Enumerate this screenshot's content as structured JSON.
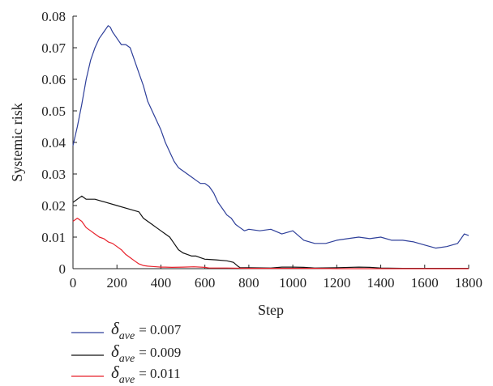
{
  "chart_data": {
    "type": "line",
    "title": "",
    "xlabel": "Step",
    "ylabel": "Systemic risk",
    "xlim": [
      0,
      1800
    ],
    "ylim": [
      0,
      0.08
    ],
    "xticks": [
      "0",
      "200",
      "400",
      "600",
      "800",
      "1000",
      "1200",
      "1400",
      "1600",
      "1800"
    ],
    "yticks": [
      "0",
      "0.01",
      "0.02",
      "0.03",
      "0.04",
      "0.05",
      "0.06",
      "0.07",
      "0.08"
    ],
    "legend_position": "bottom-left",
    "series": [
      {
        "symbol": "δ",
        "subscript": "ave",
        "value_text": "= 0.007",
        "color": "#2e3f9a",
        "x": [
          0,
          20,
          40,
          60,
          80,
          100,
          120,
          140,
          160,
          170,
          180,
          200,
          220,
          240,
          260,
          280,
          300,
          320,
          340,
          360,
          380,
          400,
          420,
          440,
          460,
          480,
          500,
          520,
          540,
          560,
          580,
          600,
          620,
          640,
          660,
          680,
          700,
          720,
          740,
          760,
          780,
          800,
          850,
          900,
          950,
          1000,
          1050,
          1100,
          1150,
          1200,
          1250,
          1300,
          1350,
          1400,
          1450,
          1500,
          1550,
          1600,
          1650,
          1700,
          1750,
          1780,
          1800
        ],
        "y": [
          0.039,
          0.045,
          0.052,
          0.06,
          0.066,
          0.07,
          0.073,
          0.075,
          0.077,
          0.0765,
          0.075,
          0.073,
          0.071,
          0.071,
          0.07,
          0.066,
          0.062,
          0.058,
          0.053,
          0.05,
          0.047,
          0.044,
          0.04,
          0.037,
          0.034,
          0.032,
          0.031,
          0.03,
          0.029,
          0.028,
          0.027,
          0.027,
          0.026,
          0.024,
          0.021,
          0.019,
          0.017,
          0.016,
          0.014,
          0.013,
          0.012,
          0.0125,
          0.012,
          0.0125,
          0.011,
          0.012,
          0.009,
          0.008,
          0.008,
          0.009,
          0.0095,
          0.01,
          0.0095,
          0.01,
          0.009,
          0.009,
          0.0085,
          0.0075,
          0.0065,
          0.007,
          0.008,
          0.011,
          0.0105
        ]
      },
      {
        "symbol": "δ",
        "subscript": "ave",
        "value_text": "= 0.009",
        "color": "#111111",
        "x": [
          0,
          20,
          40,
          60,
          80,
          100,
          150,
          200,
          250,
          300,
          320,
          340,
          360,
          380,
          400,
          420,
          440,
          460,
          480,
          500,
          520,
          540,
          560,
          580,
          600,
          650,
          700,
          730,
          750,
          760,
          800,
          900,
          950,
          1000,
          1050,
          1100,
          1200,
          1300,
          1350,
          1400,
          1500,
          1600,
          1700,
          1800
        ],
        "y": [
          0.021,
          0.022,
          0.023,
          0.022,
          0.022,
          0.022,
          0.021,
          0.02,
          0.019,
          0.018,
          0.016,
          0.015,
          0.014,
          0.013,
          0.012,
          0.011,
          0.01,
          0.008,
          0.006,
          0.005,
          0.0045,
          0.004,
          0.004,
          0.0035,
          0.003,
          0.0028,
          0.0025,
          0.002,
          0.0008,
          0.0003,
          0.0003,
          0.0002,
          0.0005,
          0.0005,
          0.0004,
          0.0002,
          0.0003,
          0.0005,
          0.0004,
          0.0002,
          0.0001,
          0.0001,
          0.0001,
          0.0001
        ]
      },
      {
        "symbol": "δ",
        "subscript": "ave",
        "value_text": "= 0.011",
        "color": "#e8212b",
        "x": [
          0,
          20,
          40,
          60,
          80,
          100,
          120,
          140,
          160,
          180,
          200,
          220,
          240,
          260,
          280,
          300,
          320,
          340,
          360,
          380,
          400,
          420,
          450,
          500,
          550,
          600,
          620,
          650,
          700,
          800,
          900,
          1000,
          1100,
          1200,
          1400,
          1600,
          1800
        ],
        "y": [
          0.015,
          0.016,
          0.015,
          0.013,
          0.012,
          0.011,
          0.01,
          0.0095,
          0.0085,
          0.008,
          0.007,
          0.006,
          0.0045,
          0.0035,
          0.0025,
          0.0015,
          0.001,
          0.0008,
          0.0007,
          0.0006,
          0.0005,
          0.0005,
          0.0004,
          0.0005,
          0.0006,
          0.0004,
          0.0002,
          0.0002,
          0.0002,
          0.0001,
          0.0001,
          0.0001,
          0.0001,
          0.0,
          0.0,
          0.0,
          0.0
        ]
      }
    ]
  }
}
